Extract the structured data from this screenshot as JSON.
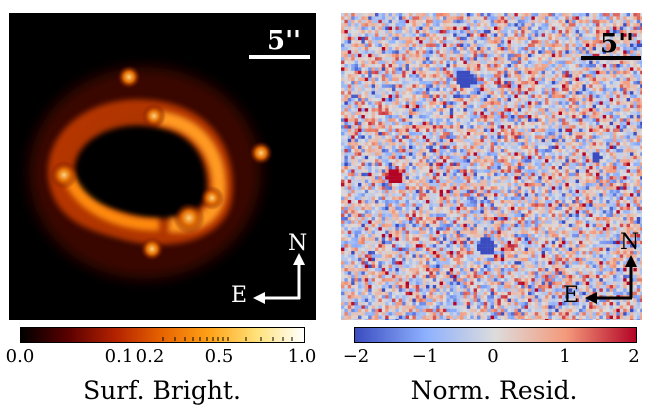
{
  "left_panel": {
    "scale_label": "5''",
    "compass": {
      "north": "N",
      "east": "E"
    },
    "colorbar": {
      "title": "Surf. Bright.",
      "ticks": [
        "0.0",
        "0.1",
        "0.2",
        "0.5",
        "1.0"
      ],
      "colors": [
        "#000000",
        "#5a0000",
        "#b32200",
        "#e86400",
        "#ffa218",
        "#ffe27a",
        "#ffffff"
      ]
    }
  },
  "right_panel": {
    "scale_label": "5''",
    "compass": {
      "north": "N",
      "east": "E"
    },
    "colorbar": {
      "title": "Norm. Resid.",
      "ticks": [
        "−2",
        "−1",
        "0",
        "1",
        "2"
      ],
      "colors": [
        "#3b4cc0",
        "#8db0fe",
        "#dddcdc",
        "#f49a7b",
        "#b40426"
      ]
    }
  }
}
